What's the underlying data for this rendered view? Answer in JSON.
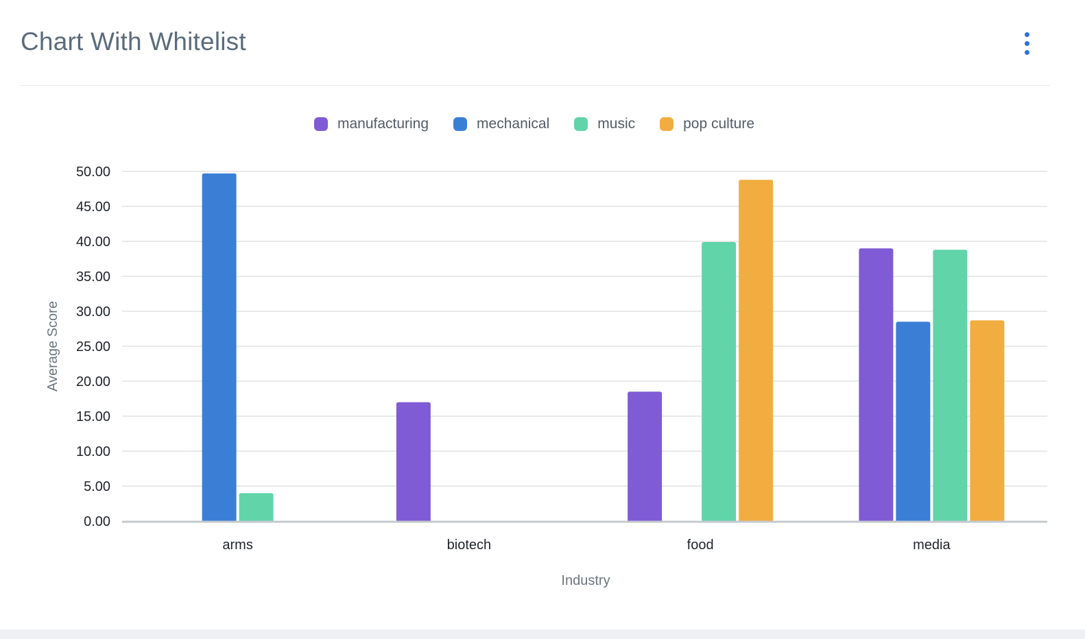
{
  "card": {
    "title": "Chart With Whitelist"
  },
  "icons": {
    "menu": "more-vertical-icon"
  },
  "colors": {
    "menu_dots": "#2f6fde",
    "grid": "#d9dcdf",
    "baseline": "#c5c9ce"
  },
  "chart_data": {
    "type": "bar",
    "xlabel": "Industry",
    "ylabel": "Average Score",
    "categories": [
      "arms",
      "biotech",
      "food",
      "media"
    ],
    "ylim": [
      0,
      50
    ],
    "yticks": [
      "0.00",
      "5.00",
      "10.00",
      "15.00",
      "20.00",
      "25.00",
      "30.00",
      "35.00",
      "40.00",
      "45.00",
      "50.00"
    ],
    "grid": true,
    "legend_position": "top-center",
    "series": [
      {
        "name": "manufacturing",
        "color": "#7f5bd5",
        "values": [
          null,
          17.0,
          18.5,
          39.0
        ]
      },
      {
        "name": "mechanical",
        "color": "#3a7fd5",
        "values": [
          49.7,
          null,
          null,
          28.5
        ]
      },
      {
        "name": "music",
        "color": "#61d4aa",
        "values": [
          4.0,
          null,
          39.9,
          38.8
        ]
      },
      {
        "name": "pop culture",
        "color": "#f1ad40",
        "values": [
          null,
          null,
          48.8,
          28.7
        ]
      }
    ]
  }
}
